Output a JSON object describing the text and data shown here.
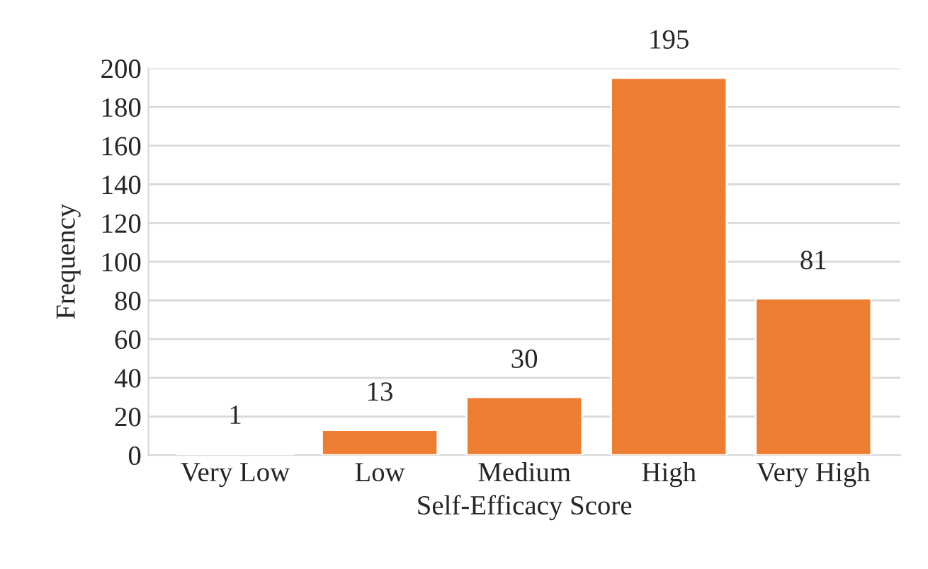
{
  "chart_data": {
    "type": "bar",
    "xlabel": "Self-Efficacy Score",
    "ylabel": "Frequency",
    "categories": [
      "Very Low",
      "Low",
      "Medium",
      "High",
      "Very High"
    ],
    "values": [
      1,
      13,
      30,
      195,
      81
    ],
    "color": "#ed7d31",
    "ylim": [
      0,
      200
    ],
    "yticks": [
      0,
      20,
      40,
      60,
      80,
      100,
      120,
      140,
      160,
      180,
      200
    ],
    "grid": "y",
    "data_labels": true
  }
}
